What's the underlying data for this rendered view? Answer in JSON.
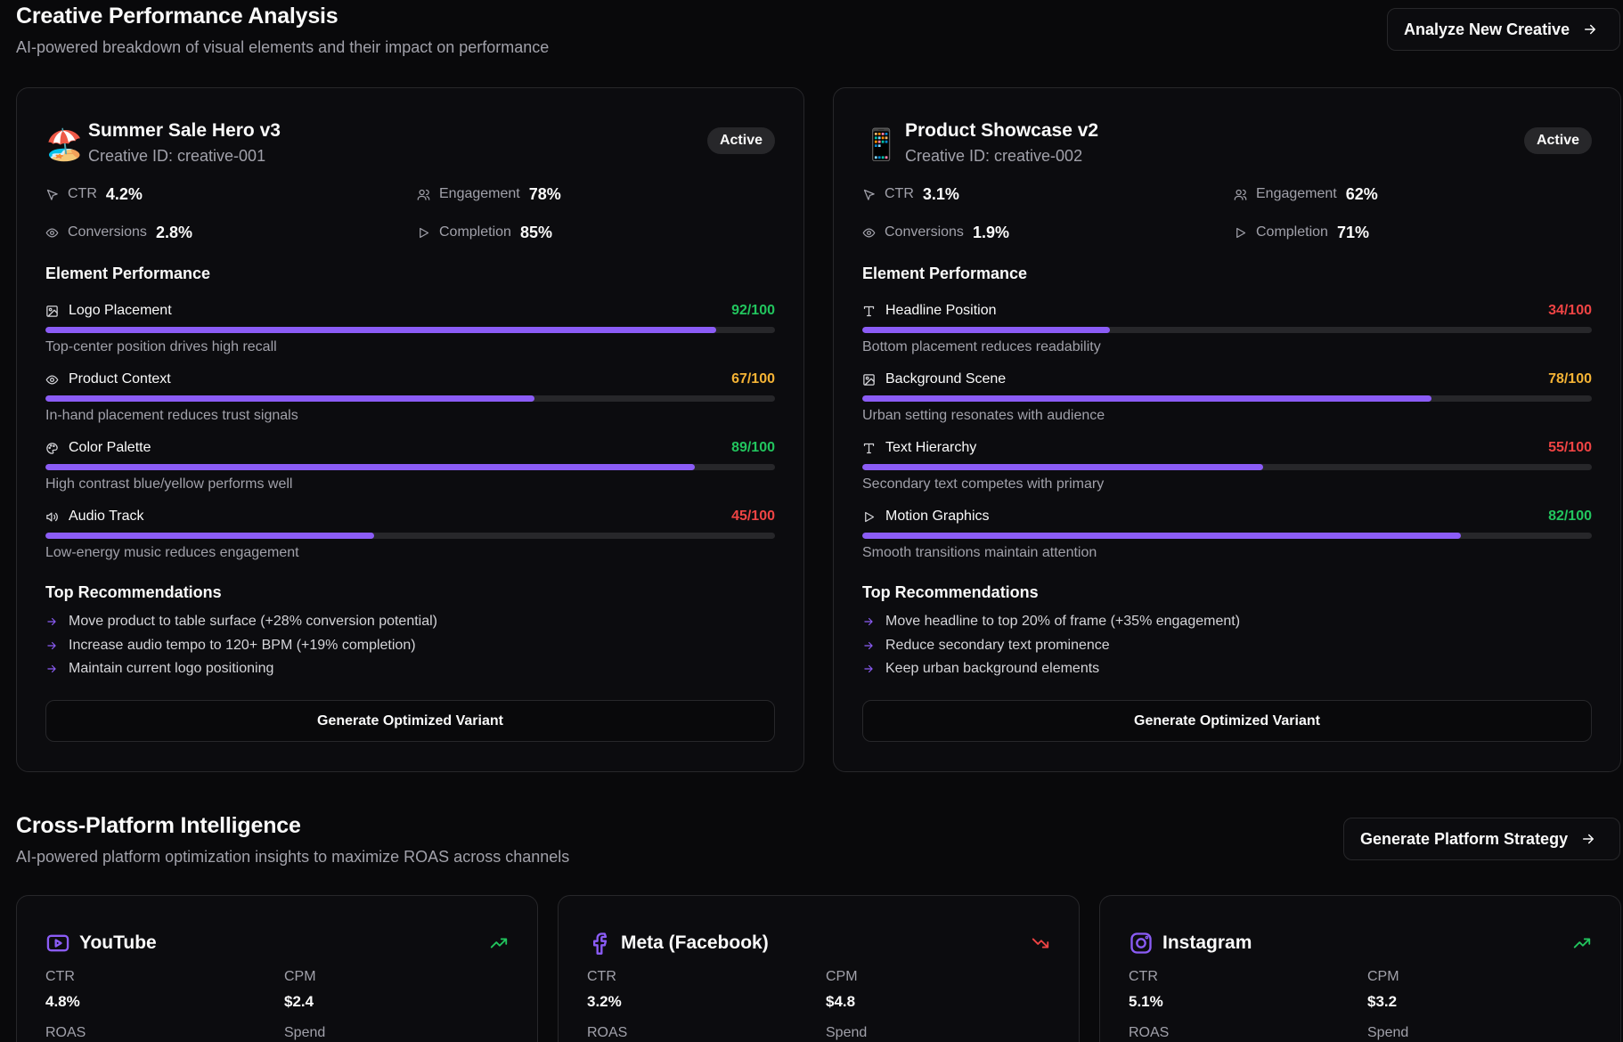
{
  "creative_section": {
    "title": "Creative Performance Analysis",
    "subtitle": "AI-powered breakdown of visual elements and their impact on performance",
    "action_label": "Analyze New Creative"
  },
  "creatives": [
    {
      "emoji": "🏖️",
      "name": "Summer Sale Hero v3",
      "creative_id": "Creative ID: creative-001",
      "status": "Active",
      "metrics": {
        "ctr_label": "CTR",
        "ctr": "4.2%",
        "engagement_label": "Engagement",
        "engagement": "78%",
        "conversions_label": "Conversions",
        "conversions": "2.8%",
        "completion_label": "Completion",
        "completion": "85%"
      },
      "element_title": "Element Performance",
      "elements": [
        {
          "icon": "image-icon",
          "name": "Logo Placement",
          "score": "92/100",
          "value": 92,
          "color": "#22c55e",
          "desc": "Top-center position drives high recall"
        },
        {
          "icon": "eye-icon",
          "name": "Product Context",
          "score": "67/100",
          "value": 67,
          "color": "#f5b335",
          "desc": "In-hand placement reduces trust signals"
        },
        {
          "icon": "palette-icon",
          "name": "Color Palette",
          "score": "89/100",
          "value": 89,
          "color": "#22c55e",
          "desc": "High contrast blue/yellow performs well"
        },
        {
          "icon": "volume-icon",
          "name": "Audio Track",
          "score": "45/100",
          "value": 45,
          "color": "#ef4444",
          "desc": "Low-energy music reduces engagement"
        }
      ],
      "rec_title": "Top Recommendations",
      "recommendations": [
        "Move product to table surface (+28% conversion potential)",
        "Increase audio tempo to 120+ BPM (+19% completion)",
        "Maintain current logo positioning"
      ],
      "generate_label": "Generate Optimized Variant"
    },
    {
      "emoji": "📱",
      "name": "Product Showcase v2",
      "creative_id": "Creative ID: creative-002",
      "status": "Active",
      "metrics": {
        "ctr_label": "CTR",
        "ctr": "3.1%",
        "engagement_label": "Engagement",
        "engagement": "62%",
        "conversions_label": "Conversions",
        "conversions": "1.9%",
        "completion_label": "Completion",
        "completion": "71%"
      },
      "element_title": "Element Performance",
      "elements": [
        {
          "icon": "type-icon",
          "name": "Headline Position",
          "score": "34/100",
          "value": 34,
          "color": "#ef4444",
          "desc": "Bottom placement reduces readability"
        },
        {
          "icon": "image-icon",
          "name": "Background Scene",
          "score": "78/100",
          "value": 78,
          "color": "#f5b335",
          "desc": "Urban setting resonates with audience"
        },
        {
          "icon": "type-icon",
          "name": "Text Hierarchy",
          "score": "55/100",
          "value": 55,
          "color": "#ef4444",
          "desc": "Secondary text competes with primary"
        },
        {
          "icon": "play-icon",
          "name": "Motion Graphics",
          "score": "82/100",
          "value": 82,
          "color": "#22c55e",
          "desc": "Smooth transitions maintain attention"
        }
      ],
      "rec_title": "Top Recommendations",
      "recommendations": [
        "Move headline to top 20% of frame (+35% engagement)",
        "Reduce secondary text prominence",
        "Keep urban background elements"
      ],
      "generate_label": "Generate Optimized Variant"
    }
  ],
  "platform_section": {
    "title": "Cross-Platform Intelligence",
    "subtitle": "AI-powered platform optimization insights to maximize ROAS across channels",
    "action_label": "Generate Platform Strategy"
  },
  "platforms": [
    {
      "name": "YouTube",
      "icon": "youtube-icon",
      "trend": "up",
      "trend_color": "#22c55e",
      "ctr_label": "CTR",
      "ctr": "4.8%",
      "cpm_label": "CPM",
      "cpm": "$2.4",
      "roas_label": "ROAS",
      "spend_label": "Spend"
    },
    {
      "name": "Meta (Facebook)",
      "icon": "facebook-icon",
      "trend": "down",
      "trend_color": "#ef4444",
      "ctr_label": "CTR",
      "ctr": "3.2%",
      "cpm_label": "CPM",
      "cpm": "$4.8",
      "roas_label": "ROAS",
      "spend_label": "Spend"
    },
    {
      "name": "Instagram",
      "icon": "instagram-icon",
      "trend": "up",
      "trend_color": "#22c55e",
      "ctr_label": "CTR",
      "ctr": "5.1%",
      "cpm_label": "CPM",
      "cpm": "$3.2",
      "roas_label": "ROAS",
      "spend_label": "Spend"
    }
  ],
  "accent_color": "#8b5cf6"
}
